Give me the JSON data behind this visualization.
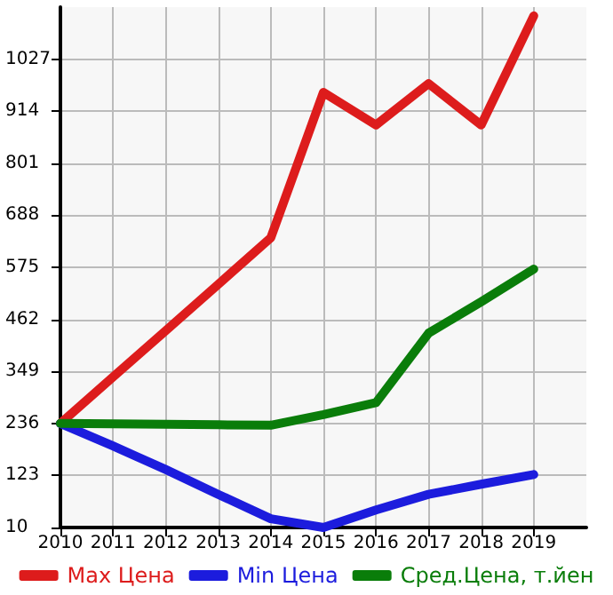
{
  "chart_data": {
    "type": "line",
    "x": [
      2010,
      2011,
      2012,
      2013,
      2014,
      2015,
      2016,
      2017,
      2018,
      2019
    ],
    "series": [
      {
        "name": "Max Цена",
        "color": "#dd1c1c",
        "values": [
          236,
          337,
          437,
          538,
          639,
          955,
          884,
          974,
          884,
          1121
        ]
      },
      {
        "name": "Min Цена",
        "color": "#1c1cdd",
        "values": [
          236,
          187,
          136,
          82,
          29,
          10,
          48,
          82,
          104,
          125
        ]
      },
      {
        "name": "Сред.Цена, т.йен",
        "color": "#0a7d0a",
        "values": [
          236,
          235,
          234,
          233,
          232,
          255,
          281,
          432,
          500,
          571
        ]
      }
    ],
    "xlim": [
      2010,
      2020
    ],
    "xticks": [
      2010,
      2011,
      2012,
      2013,
      2014,
      2015,
      2016,
      2017,
      2018,
      2019
    ],
    "ylim": [
      10,
      1140
    ],
    "yticks": [
      10,
      123,
      236,
      349,
      462,
      575,
      688,
      801,
      914,
      1027
    ],
    "grid": true,
    "legend": "bottom",
    "marker": "none",
    "line_style": "solid"
  }
}
